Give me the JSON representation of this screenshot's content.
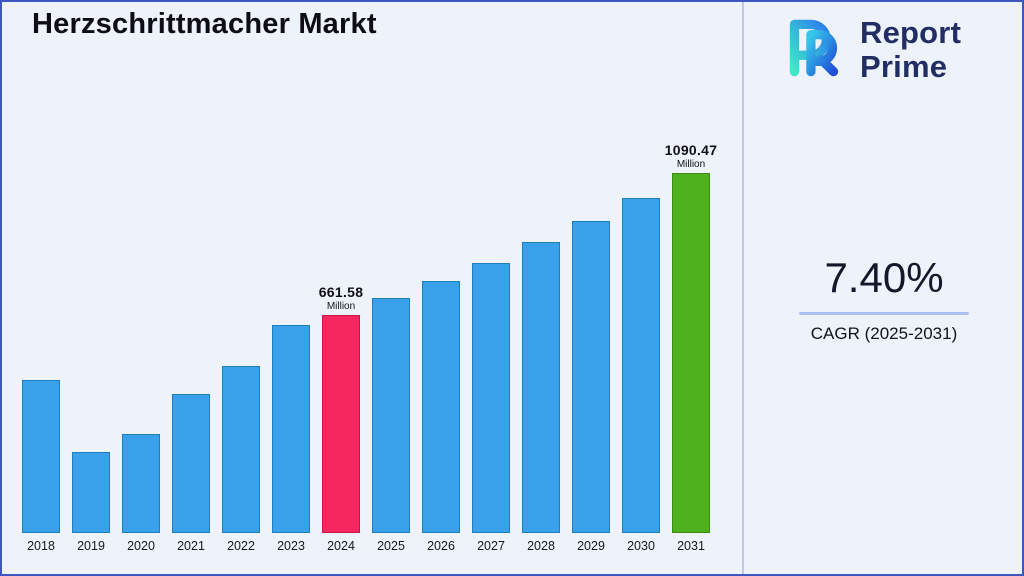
{
  "page": {
    "title": "Herzschrittmacher Markt"
  },
  "logo": {
    "line1": "Report",
    "line2": "Prime"
  },
  "cagr": {
    "value": "7.40%",
    "label": "CAGR (2025-2031)"
  },
  "chart_data": {
    "type": "bar",
    "title": "Herzschrittmacher Markt",
    "unit": "Million",
    "categories": [
      "2018",
      "2019",
      "2020",
      "2021",
      "2022",
      "2023",
      "2024",
      "2025",
      "2026",
      "2027",
      "2028",
      "2029",
      "2030",
      "2031"
    ],
    "values": [
      465,
      245,
      300,
      420,
      505,
      630,
      661.58,
      710.5,
      763.1,
      819.5,
      880.2,
      945.3,
      1015.3,
      1090.47
    ],
    "labeled_values": {
      "2024": 661.58,
      "2031": 1090.47
    },
    "xlabel": "",
    "ylabel": "",
    "ylim": [
      0,
      1150
    ],
    "grid": false,
    "legend": false,
    "annotations": [
      {
        "year": "2024",
        "value_label": "661.58",
        "unit_label": "Million"
      },
      {
        "year": "2031",
        "value_label": "1090.47",
        "unit_label": "Million"
      }
    ],
    "bar_colors": {
      "default": {
        "fill": "#38a1e9",
        "border": "#1d7fc0"
      },
      "2024": {
        "fill": "#f5275e",
        "border": "#c9134a"
      },
      "2031": {
        "fill": "#4fb11d",
        "border": "#3a8c12"
      }
    }
  },
  "colors": {
    "background": "#edf2fb",
    "page_border": "#3d56c0",
    "divider": "#bcc9f1",
    "cagr_underline": "#a9c2f3",
    "logo_navy": "#222e63"
  }
}
